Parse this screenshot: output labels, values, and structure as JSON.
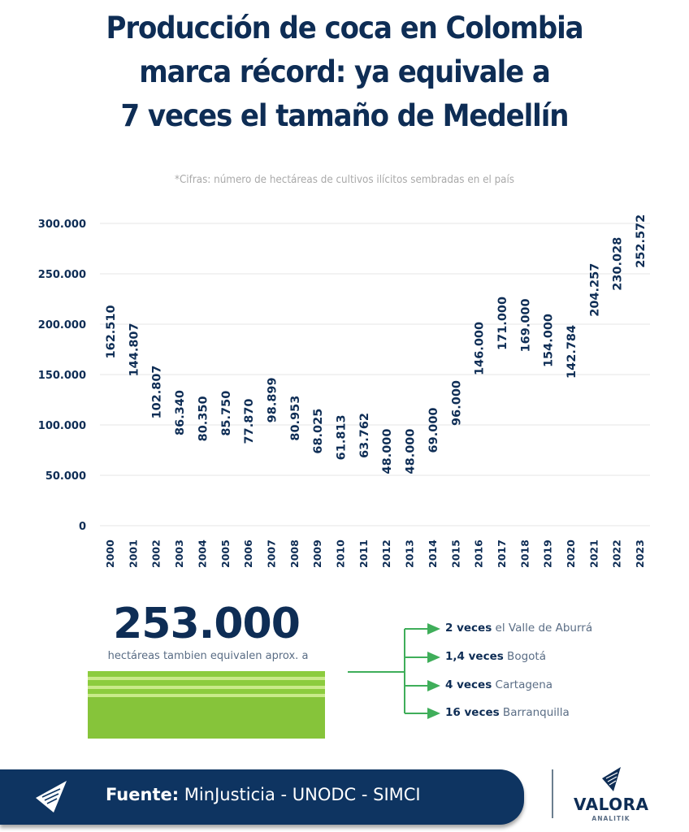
{
  "header": {
    "title_lines": [
      "Producción de coca en Colombia",
      "marca récord: ya equivale a",
      "7 veces el tamaño de Medellín"
    ],
    "subtitle": "*Cifras: número de hectáreas de cultivos ilícitos sembradas en el país"
  },
  "chart_data": {
    "type": "bar",
    "style": "pictogram",
    "icon": "coca-leaf-icon",
    "units_per_icon": 20000,
    "title": "Producción de coca en Colombia marca récord: ya equivale a 7 veces el tamaño de Medellín",
    "xlabel": "",
    "ylabel": "",
    "ylim": [
      0,
      300000
    ],
    "yticks": [
      0,
      50000,
      100000,
      150000,
      200000,
      250000,
      300000
    ],
    "ytick_labels": [
      "0",
      "50.000",
      "100.000",
      "150.000",
      "200.000",
      "250.000",
      "300.000"
    ],
    "grid": true,
    "categories": [
      "2000",
      "2001",
      "2002",
      "2003",
      "2004",
      "2005",
      "2006",
      "2007",
      "2008",
      "2009",
      "2010",
      "2011",
      "2012",
      "2013",
      "2014",
      "2015",
      "2016",
      "2017",
      "2018",
      "2019",
      "2020",
      "2021",
      "2022",
      "2023"
    ],
    "values": [
      162510,
      144807,
      102807,
      86340,
      80350,
      85750,
      77870,
      98899,
      80953,
      68025,
      61813,
      63762,
      48000,
      48000,
      69000,
      96000,
      146000,
      171000,
      169000,
      154000,
      142784,
      204257,
      230028,
      252572
    ],
    "value_labels": [
      "162.510",
      "144.807",
      "102.807",
      "86.340",
      "80.350",
      "85.750",
      "77.870",
      "98.899",
      "80.953",
      "68.025",
      "61.813",
      "63.762",
      "48.000",
      "48.000",
      "69.000",
      "96.000",
      "146.000",
      "171.000",
      "169.000",
      "154.000",
      "142.784",
      "204.257",
      "230.028",
      "252.572"
    ]
  },
  "colors": {
    "navy": "#0e2d55",
    "leaf": "#8fd16a",
    "leaf_dark": "#6cbf4a",
    "arrow": "#3fae5a",
    "grid": "#e6e6e6",
    "footer": "#0e3461"
  },
  "summary": {
    "big_number": "253.000",
    "caption": "hectáreas tambien equivalen aprox. a",
    "equivalents": [
      {
        "bold": "2 veces",
        "rest": " el Valle de Aburrá"
      },
      {
        "bold": "1,4 veces",
        "rest": " Bogotá"
      },
      {
        "bold": "4 veces",
        "rest": " Cartagena"
      },
      {
        "bold": "16 veces",
        "rest": " Barranquilla"
      }
    ]
  },
  "footer": {
    "source_label": "Fuente:",
    "source_text": " MinJusticia - UNODC - SIMCI",
    "brand_name": "VALORA",
    "brand_sub": "ANALITIK"
  }
}
